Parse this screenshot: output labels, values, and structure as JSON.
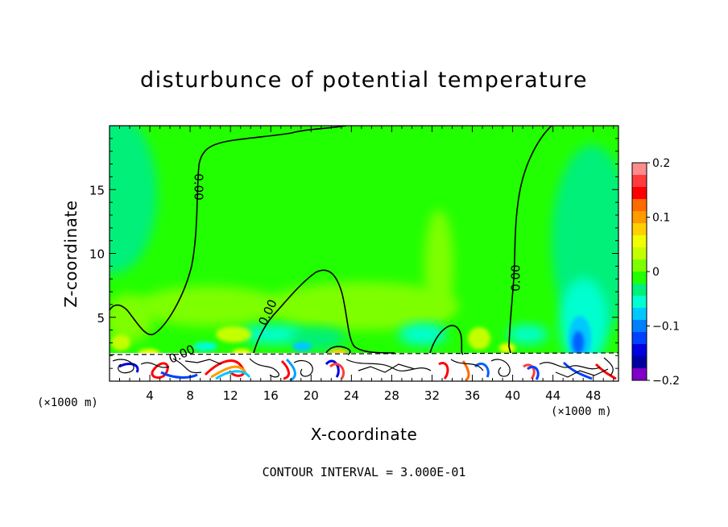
{
  "chart_data": {
    "type": "heatmap",
    "title": "disturbunce of potential temperature",
    "xlabel": "X-coordinate",
    "ylabel": "Z-coordinate",
    "x_unit": "(×1000 m)",
    "x_unit_right": "(×1000 m)",
    "xlim": [
      0,
      50.5
    ],
    "ylim": [
      0,
      20
    ],
    "x_ticks": [
      4,
      8,
      12,
      16,
      20,
      24,
      28,
      32,
      36,
      40,
      44,
      48
    ],
    "y_ticks": [
      5,
      10,
      15
    ],
    "colorbar": {
      "min": -0.2,
      "max": 0.2,
      "tick_values": [
        0.2,
        0.1,
        0,
        -0.1,
        -0.2
      ],
      "tick_labels": [
        "0.2",
        "0.1",
        "0",
        "−0.1",
        "−0.2"
      ],
      "colors": [
        "#ff8c8c",
        "#ff3c3c",
        "#ff0000",
        "#ff6a00",
        "#ff9a00",
        "#ffd000",
        "#f0ff00",
        "#c4ff00",
        "#7eff00",
        "#22ff00",
        "#00f07a",
        "#00ffd0",
        "#00c8ff",
        "#0080ff",
        "#0040ff",
        "#0000e0",
        "#0000a0",
        "#8000c8"
      ]
    },
    "contour_labels": [
      "0.00",
      "0.00",
      "0.00",
      "0.00"
    ],
    "contour_interval": "CONTOUR INTERVAL = 3.000E-01"
  }
}
